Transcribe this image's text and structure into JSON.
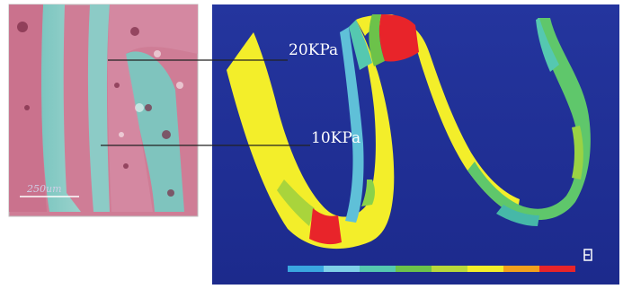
{
  "histology_panel": {
    "scale_bar_label": "250um"
  },
  "stress_map": {
    "labels": [
      {
        "id": "upper",
        "text": "20KPa"
      },
      {
        "id": "lower",
        "text": "10KPa"
      }
    ],
    "colorbar_colors": [
      "#3aa6e0",
      "#7fd0e8",
      "#55c8b0",
      "#6cc24a",
      "#b8d83a",
      "#f3ee2a",
      "#f2a01c",
      "#e8242a"
    ]
  },
  "colors": {
    "background_blue": "#21309a",
    "tissue_pink": "#d8849c",
    "tissue_teal": "#86c8c4",
    "high_stress": "#e8242a",
    "mid_stress": "#f3ee2a",
    "low_stress": "#5fc76b"
  }
}
